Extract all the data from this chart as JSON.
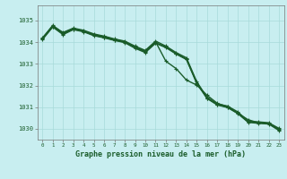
{
  "title": "Graphe pression niveau de la mer (hPa)",
  "background_color": "#c8eef0",
  "grid_color": "#a8dada",
  "line_color": "#1a5c2a",
  "x_ticks": [
    0,
    1,
    2,
    3,
    4,
    5,
    6,
    7,
    8,
    9,
    10,
    11,
    12,
    13,
    14,
    15,
    16,
    17,
    18,
    19,
    20,
    21,
    22,
    23
  ],
  "ylim": [
    1029.5,
    1035.7
  ],
  "y_ticks": [
    1030,
    1031,
    1032,
    1033,
    1034,
    1035
  ],
  "series": [
    [
      1034.2,
      1034.75,
      1034.45,
      1034.65,
      1034.55,
      1034.38,
      1034.28,
      1034.15,
      1034.05,
      1033.82,
      1033.62,
      1034.05,
      1033.82,
      1033.52,
      1033.28,
      1032.18,
      1031.45,
      1031.15,
      1031.05,
      1030.78,
      1030.35,
      1030.32,
      1030.28,
      1030.02
    ],
    [
      1034.18,
      1034.78,
      1034.42,
      1034.62,
      1034.52,
      1034.35,
      1034.25,
      1034.12,
      1034.02,
      1033.78,
      1033.58,
      1034.02,
      1033.12,
      1032.78,
      1032.25,
      1032.02,
      1031.55,
      1031.18,
      1031.02,
      1030.72,
      1030.42,
      1030.28,
      1030.25,
      1029.98
    ],
    [
      1034.15,
      1034.72,
      1034.38,
      1034.6,
      1034.5,
      1034.32,
      1034.22,
      1034.1,
      1034.0,
      1033.75,
      1033.55,
      1033.98,
      1033.78,
      1033.48,
      1033.22,
      1032.12,
      1031.42,
      1031.12,
      1031.0,
      1030.72,
      1030.32,
      1030.28,
      1030.25,
      1029.95
    ],
    [
      1034.12,
      1034.7,
      1034.35,
      1034.58,
      1034.48,
      1034.3,
      1034.2,
      1034.08,
      1033.98,
      1033.72,
      1033.52,
      1033.95,
      1033.75,
      1033.45,
      1033.2,
      1032.1,
      1031.4,
      1031.1,
      1030.98,
      1030.7,
      1030.3,
      1030.25,
      1030.22,
      1029.92
    ]
  ]
}
